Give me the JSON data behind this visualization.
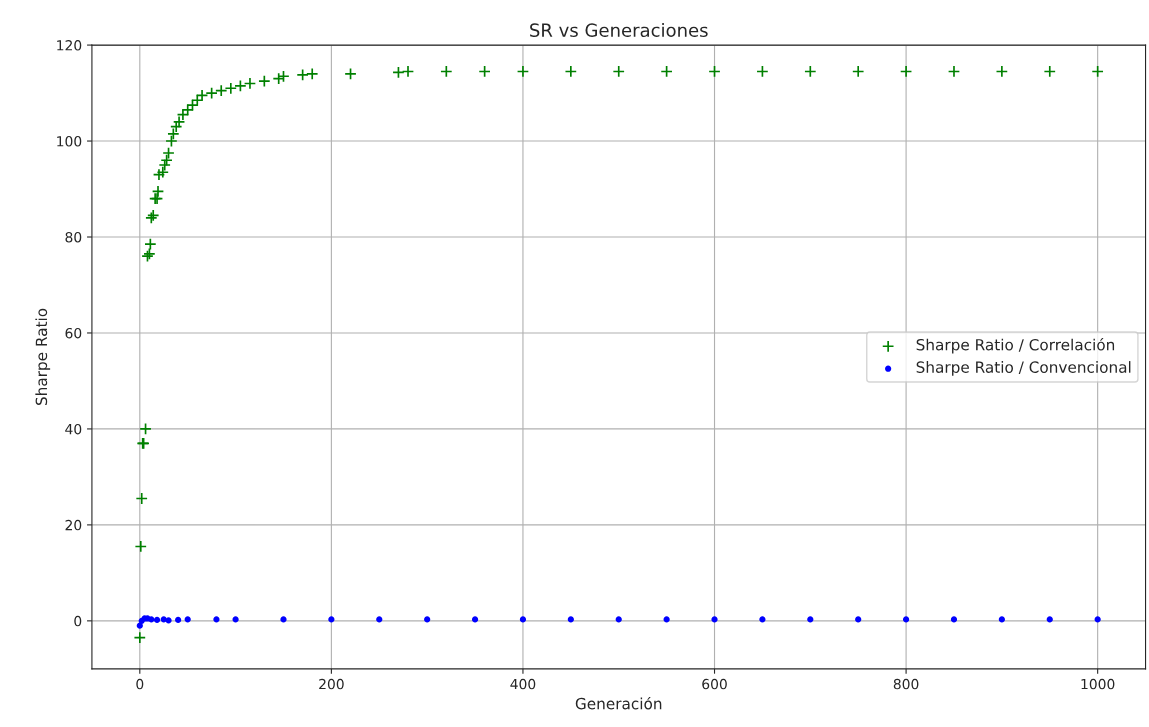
{
  "chart_data": {
    "type": "scatter",
    "title": "SR vs Generaciones",
    "xlabel": "Generación",
    "ylabel": "Sharpe Ratio",
    "xlim": [
      -50,
      1050
    ],
    "ylim": [
      -10,
      120
    ],
    "xticks": [
      0,
      200,
      400,
      600,
      800,
      1000
    ],
    "yticks": [
      0,
      20,
      40,
      60,
      80,
      100,
      120
    ],
    "grid": true,
    "legend": "right",
    "series": [
      {
        "name": "Sharpe Ratio / Correlación",
        "color": "#008000",
        "marker": "cross",
        "x": [
          0,
          1,
          2,
          3,
          4,
          6,
          8,
          10,
          11,
          12,
          14,
          16,
          18,
          19,
          20,
          24,
          26,
          28,
          30,
          33,
          35,
          38,
          41,
          45,
          50,
          55,
          60,
          65,
          75,
          85,
          95,
          105,
          115,
          130,
          145,
          150,
          170,
          180,
          220,
          270,
          280,
          320,
          360,
          400,
          450,
          500,
          550,
          600,
          650,
          700,
          750,
          800,
          850,
          900,
          950,
          1000
        ],
        "values": [
          -3.5,
          15.5,
          25.5,
          37,
          37,
          40,
          76,
          76.5,
          78.5,
          84,
          84.5,
          88,
          88,
          89.5,
          93,
          93.5,
          95,
          96,
          97.5,
          100,
          101.5,
          103,
          104,
          105.5,
          106.5,
          107.5,
          108.5,
          109.5,
          110,
          110.5,
          111,
          111.5,
          112,
          112.5,
          113,
          113.5,
          113.8,
          114,
          114,
          114.3,
          114.5,
          114.5,
          114.5,
          114.5,
          114.5,
          114.5,
          114.5,
          114.5,
          114.5,
          114.5,
          114.5,
          114.5,
          114.5,
          114.5,
          114.5,
          114.5
        ]
      },
      {
        "name": "Sharpe Ratio / Convencional",
        "color": "#0000ff",
        "marker": "circle",
        "x": [
          0,
          2,
          5,
          8,
          12,
          18,
          25,
          30,
          40,
          50,
          80,
          100,
          150,
          200,
          250,
          300,
          350,
          400,
          450,
          500,
          550,
          600,
          650,
          700,
          750,
          800,
          850,
          900,
          950,
          1000
        ],
        "values": [
          -1,
          0,
          0.5,
          0.5,
          0.3,
          0.2,
          0.3,
          0.1,
          0.2,
          0.3,
          0.3,
          0.3,
          0.3,
          0.3,
          0.3,
          0.3,
          0.3,
          0.3,
          0.3,
          0.3,
          0.3,
          0.3,
          0.3,
          0.3,
          0.3,
          0.3,
          0.3,
          0.3,
          0.3,
          0.3
        ]
      }
    ]
  }
}
